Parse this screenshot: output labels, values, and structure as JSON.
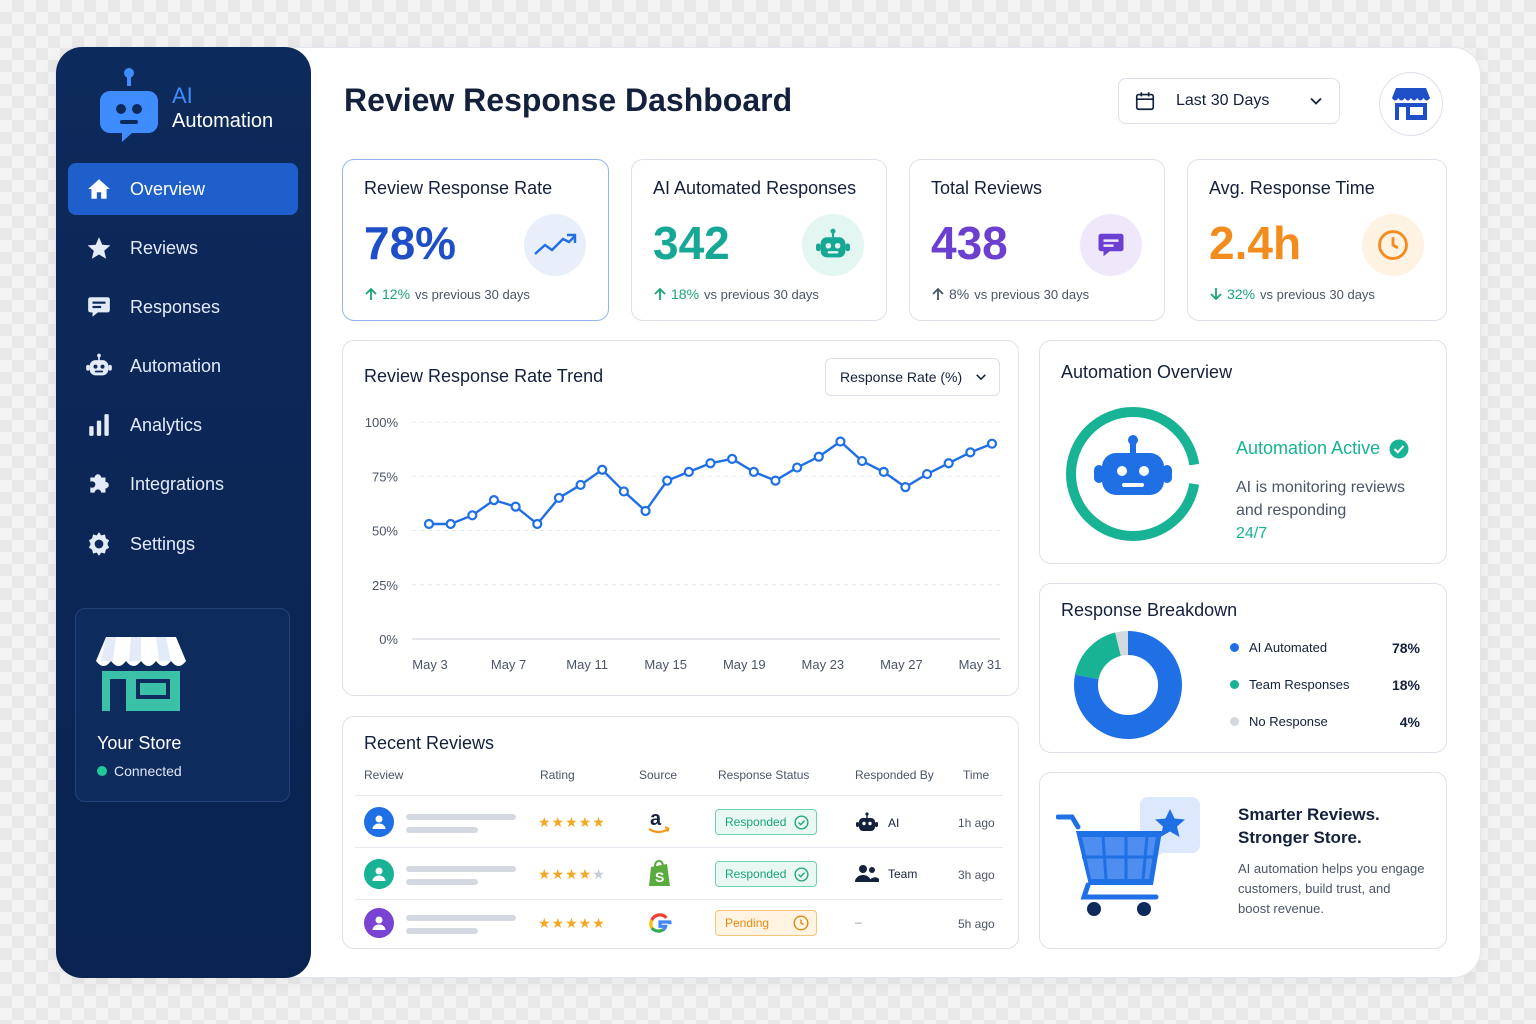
{
  "brand": {
    "ai": "AI",
    "name": "Automation"
  },
  "nav": [
    {
      "label": "Overview",
      "icon": "home-icon"
    },
    {
      "label": "Reviews",
      "icon": "star-icon"
    },
    {
      "label": "Responses",
      "icon": "chat-icon"
    },
    {
      "label": "Automation",
      "icon": "robot-icon"
    },
    {
      "label": "Analytics",
      "icon": "bar-chart-icon"
    },
    {
      "label": "Integrations",
      "icon": "puzzle-icon"
    },
    {
      "label": "Settings",
      "icon": "gear-icon"
    }
  ],
  "store": {
    "name": "Your Store",
    "status": "Connected",
    "status_color": "#1ec99a"
  },
  "header": {
    "title": "Review Response Dashboard",
    "date_range": "Last 30 Days"
  },
  "kpis": [
    {
      "title": "Review Response Rate",
      "value": "78%",
      "delta": "12%",
      "delta_text": "vs previous 30 days",
      "direction": "up",
      "color": "#1f4fc7",
      "icon": "trend-up-icon"
    },
    {
      "title": "AI Automated Responses",
      "value": "342",
      "delta": "18%",
      "delta_text": "vs previous 30 days",
      "direction": "up",
      "color": "#16a894",
      "icon": "robot-icon"
    },
    {
      "title": "Total Reviews",
      "value": "438",
      "delta": "8%",
      "delta_text": "vs previous 30 days",
      "direction": "up",
      "color": "#6b3fcf",
      "icon": "chat-icon"
    },
    {
      "title": "Avg. Response Time",
      "value": "2.4h",
      "delta": "32%",
      "delta_text": "vs previous 30 days",
      "direction": "down",
      "color": "#f28c1c",
      "icon": "clock-icon"
    }
  ],
  "trend": {
    "title": "Review Response Rate Trend",
    "metric": "Response Rate (%)",
    "chart_data": {
      "type": "line",
      "yticks": [
        "100%",
        "75%",
        "50%",
        "25%",
        "0%"
      ],
      "xticks": [
        "May 3",
        "May 7",
        "May 11",
        "May 15",
        "May 19",
        "May 23",
        "May 27",
        "May 31"
      ],
      "ylim": [
        0,
        100
      ],
      "series": [
        {
          "values": [
            53,
            53,
            57,
            64,
            61,
            53,
            65,
            71,
            78,
            68,
            59,
            73,
            77,
            81,
            83,
            77,
            73,
            79,
            84,
            91,
            82,
            77,
            70,
            76,
            81,
            86,
            90
          ]
        }
      ]
    }
  },
  "automation": {
    "title": "Automation Overview",
    "status": "Automation Active",
    "line1": "AI is monitoring reviews",
    "line2": "and responding",
    "line3": "24/7"
  },
  "breakdown": {
    "title": "Response Breakdown",
    "chart_data": {
      "type": "pie",
      "labels": [
        "AI Automated",
        "Team Responses",
        "No Response"
      ],
      "values": [
        78,
        18,
        4
      ],
      "colors": [
        "#1f6fe5",
        "#17b394",
        "#d4d9e0"
      ]
    },
    "rows": [
      {
        "label": "AI Automated",
        "pct": "78%",
        "color": "#1f6fe5"
      },
      {
        "label": "Team Responses",
        "pct": "18%",
        "color": "#17b394"
      },
      {
        "label": "No Response",
        "pct": "4%",
        "color": "#d4d9e0"
      }
    ]
  },
  "recent": {
    "title": "Recent Reviews",
    "columns": [
      "Review",
      "Rating",
      "Source",
      "Response Status",
      "Responded By",
      "Time"
    ],
    "rows": [
      {
        "avatar_color": "#1f6fe5",
        "rating": 5,
        "source": "amazon",
        "status": "Responded",
        "by": "AI",
        "time": "1h ago"
      },
      {
        "avatar_color": "#17b394",
        "rating": 4,
        "source": "shopify",
        "status": "Responded",
        "by": "Team",
        "time": "3h ago"
      },
      {
        "avatar_color": "#7a44d2",
        "rating": 5,
        "source": "google",
        "status": "Pending",
        "by": "–",
        "time": "5h ago"
      }
    ]
  },
  "promo": {
    "title1": "Smarter Reviews.",
    "title2": "Stronger Store.",
    "body1": "AI automation helps you engage",
    "body2": "customers, build trust, and",
    "body3": "boost revenue."
  }
}
